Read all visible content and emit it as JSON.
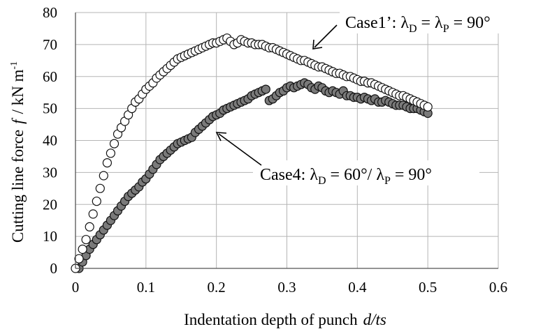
{
  "chart_data": {
    "type": "scatter",
    "title": "",
    "xlabel": "Indentation depth of punch",
    "xlabel_var": "d/ts",
    "ylabel": "Cutting line force",
    "ylabel_var": "f",
    "ylabel_unit": "/ kN m",
    "ylabel_unit_sup": "-1",
    "xlim": [
      0,
      0.6
    ],
    "ylim": [
      0,
      80
    ],
    "xticks": [
      "0",
      "0.1",
      "0.2",
      "0.3",
      "0.4",
      "0.5",
      "0.6"
    ],
    "yticks": [
      "0",
      "10",
      "20",
      "30",
      "40",
      "50",
      "60",
      "70",
      "80"
    ],
    "grid": true,
    "series": [
      {
        "id": "case1",
        "marker": "open-circle",
        "fill": "#ffffff",
        "stroke": "#111111",
        "label_prefix": "Case1’: λ",
        "label_sub1": "D",
        "label_mid": " = λ",
        "label_sub2": "P",
        "label_suffix": "  = 90°",
        "points": [
          [
            0.0,
            0
          ],
          [
            0.005,
            3
          ],
          [
            0.01,
            6
          ],
          [
            0.015,
            9
          ],
          [
            0.02,
            13
          ],
          [
            0.025,
            17
          ],
          [
            0.03,
            21
          ],
          [
            0.035,
            25
          ],
          [
            0.04,
            29
          ],
          [
            0.045,
            33
          ],
          [
            0.05,
            36
          ],
          [
            0.055,
            39
          ],
          [
            0.06,
            42
          ],
          [
            0.065,
            44
          ],
          [
            0.07,
            46
          ],
          [
            0.075,
            48
          ],
          [
            0.08,
            50
          ],
          [
            0.085,
            52
          ],
          [
            0.09,
            53
          ],
          [
            0.095,
            54.5
          ],
          [
            0.1,
            56
          ],
          [
            0.105,
            57
          ],
          [
            0.11,
            58
          ],
          [
            0.115,
            59.5
          ],
          [
            0.12,
            60.5
          ],
          [
            0.125,
            61.5
          ],
          [
            0.13,
            62.5
          ],
          [
            0.135,
            63.5
          ],
          [
            0.14,
            64.5
          ],
          [
            0.145,
            65.5
          ],
          [
            0.15,
            66
          ],
          [
            0.155,
            66.5
          ],
          [
            0.16,
            67
          ],
          [
            0.165,
            67.5
          ],
          [
            0.17,
            68
          ],
          [
            0.175,
            68.5
          ],
          [
            0.18,
            69
          ],
          [
            0.185,
            69.5
          ],
          [
            0.19,
            70
          ],
          [
            0.195,
            70.5
          ],
          [
            0.2,
            70.5
          ],
          [
            0.205,
            71
          ],
          [
            0.21,
            71.5
          ],
          [
            0.215,
            72
          ],
          [
            0.22,
            71
          ],
          [
            0.225,
            70
          ],
          [
            0.23,
            70.5
          ],
          [
            0.235,
            71.5
          ],
          [
            0.24,
            71
          ],
          [
            0.245,
            70.5
          ],
          [
            0.25,
            70.5
          ],
          [
            0.255,
            70
          ],
          [
            0.26,
            70
          ],
          [
            0.265,
            70
          ],
          [
            0.27,
            69.5
          ],
          [
            0.275,
            69
          ],
          [
            0.28,
            69
          ],
          [
            0.285,
            68.5
          ],
          [
            0.29,
            68
          ],
          [
            0.295,
            67.5
          ],
          [
            0.3,
            67
          ],
          [
            0.305,
            66.5
          ],
          [
            0.31,
            66
          ],
          [
            0.315,
            65.5
          ],
          [
            0.32,
            65
          ],
          [
            0.325,
            65
          ],
          [
            0.33,
            64.5
          ],
          [
            0.335,
            64
          ],
          [
            0.34,
            63.5
          ],
          [
            0.345,
            63
          ],
          [
            0.35,
            63
          ],
          [
            0.355,
            62.5
          ],
          [
            0.36,
            62
          ],
          [
            0.365,
            61.5
          ],
          [
            0.37,
            61
          ],
          [
            0.375,
            61
          ],
          [
            0.38,
            60.5
          ],
          [
            0.385,
            60
          ],
          [
            0.39,
            60
          ],
          [
            0.395,
            59.5
          ],
          [
            0.4,
            59
          ],
          [
            0.405,
            58.5
          ],
          [
            0.41,
            58.5
          ],
          [
            0.415,
            58
          ],
          [
            0.42,
            58
          ],
          [
            0.425,
            57.5
          ],
          [
            0.43,
            57
          ],
          [
            0.435,
            56.5
          ],
          [
            0.44,
            56
          ],
          [
            0.445,
            55.5
          ],
          [
            0.45,
            55
          ],
          [
            0.455,
            54.5
          ],
          [
            0.46,
            54
          ],
          [
            0.465,
            54
          ],
          [
            0.47,
            53.5
          ],
          [
            0.475,
            53
          ],
          [
            0.48,
            52.5
          ],
          [
            0.485,
            52
          ],
          [
            0.49,
            51.5
          ],
          [
            0.495,
            51
          ],
          [
            0.5,
            50.5
          ]
        ]
      },
      {
        "id": "case4",
        "marker": "filled-circle",
        "fill": "#7a7a7a",
        "stroke": "#111111",
        "label_prefix": "Case4: λ",
        "label_sub1": "D",
        "label_mid": " = 60°/ λ",
        "label_sub2": "P",
        "label_suffix": " = 90°",
        "points": [
          [
            0.005,
            0
          ],
          [
            0.01,
            2
          ],
          [
            0.015,
            4
          ],
          [
            0.02,
            6
          ],
          [
            0.025,
            7.5
          ],
          [
            0.03,
            9
          ],
          [
            0.035,
            10.5
          ],
          [
            0.04,
            12
          ],
          [
            0.045,
            13.5
          ],
          [
            0.05,
            15
          ],
          [
            0.055,
            16.5
          ],
          [
            0.06,
            18
          ],
          [
            0.065,
            19.5
          ],
          [
            0.07,
            21
          ],
          [
            0.075,
            22.5
          ],
          [
            0.08,
            23.5
          ],
          [
            0.085,
            24.5
          ],
          [
            0.09,
            25.5
          ],
          [
            0.095,
            27
          ],
          [
            0.1,
            28
          ],
          [
            0.105,
            29.5
          ],
          [
            0.11,
            31
          ],
          [
            0.115,
            32.5
          ],
          [
            0.12,
            34
          ],
          [
            0.125,
            35
          ],
          [
            0.13,
            36
          ],
          [
            0.135,
            37
          ],
          [
            0.14,
            38
          ],
          [
            0.145,
            39
          ],
          [
            0.15,
            39.5
          ],
          [
            0.155,
            40
          ],
          [
            0.16,
            40.5
          ],
          [
            0.165,
            41
          ],
          [
            0.17,
            42.5
          ],
          [
            0.175,
            43.5
          ],
          [
            0.18,
            44.5
          ],
          [
            0.185,
            45.5
          ],
          [
            0.19,
            46.5
          ],
          [
            0.195,
            47.5
          ],
          [
            0.2,
            48
          ],
          [
            0.205,
            48.5
          ],
          [
            0.21,
            49.5
          ],
          [
            0.215,
            50
          ],
          [
            0.22,
            50.5
          ],
          [
            0.225,
            51
          ],
          [
            0.23,
            51.5
          ],
          [
            0.235,
            52
          ],
          [
            0.24,
            52.5
          ],
          [
            0.245,
            53
          ],
          [
            0.25,
            54
          ],
          [
            0.255,
            54.5
          ],
          [
            0.26,
            55
          ],
          [
            0.265,
            55.5
          ],
          [
            0.27,
            56
          ],
          [
            0.275,
            52.5
          ],
          [
            0.28,
            53
          ],
          [
            0.285,
            54
          ],
          [
            0.29,
            55
          ],
          [
            0.295,
            55.5
          ],
          [
            0.3,
            56.5
          ],
          [
            0.305,
            57
          ],
          [
            0.31,
            56.5
          ],
          [
            0.315,
            57
          ],
          [
            0.32,
            57.5
          ],
          [
            0.325,
            58
          ],
          [
            0.33,
            57.5
          ],
          [
            0.335,
            56.5
          ],
          [
            0.34,
            56
          ],
          [
            0.345,
            57
          ],
          [
            0.35,
            56.5
          ],
          [
            0.355,
            55.5
          ],
          [
            0.36,
            55
          ],
          [
            0.365,
            55.5
          ],
          [
            0.37,
            55
          ],
          [
            0.375,
            54.5
          ],
          [
            0.38,
            55.5
          ],
          [
            0.385,
            54
          ],
          [
            0.39,
            54
          ],
          [
            0.395,
            53.5
          ],
          [
            0.4,
            53.5
          ],
          [
            0.405,
            53
          ],
          [
            0.41,
            53.5
          ],
          [
            0.415,
            53
          ],
          [
            0.42,
            52.5
          ],
          [
            0.425,
            53
          ],
          [
            0.43,
            52
          ],
          [
            0.435,
            52
          ],
          [
            0.44,
            52.5
          ],
          [
            0.445,
            52
          ],
          [
            0.45,
            51.5
          ],
          [
            0.455,
            51
          ],
          [
            0.46,
            51
          ],
          [
            0.465,
            51
          ],
          [
            0.47,
            50.5
          ],
          [
            0.475,
            50
          ],
          [
            0.48,
            50
          ],
          [
            0.485,
            50
          ],
          [
            0.49,
            49.5
          ],
          [
            0.495,
            49
          ],
          [
            0.5,
            48.5
          ]
        ]
      }
    ]
  }
}
